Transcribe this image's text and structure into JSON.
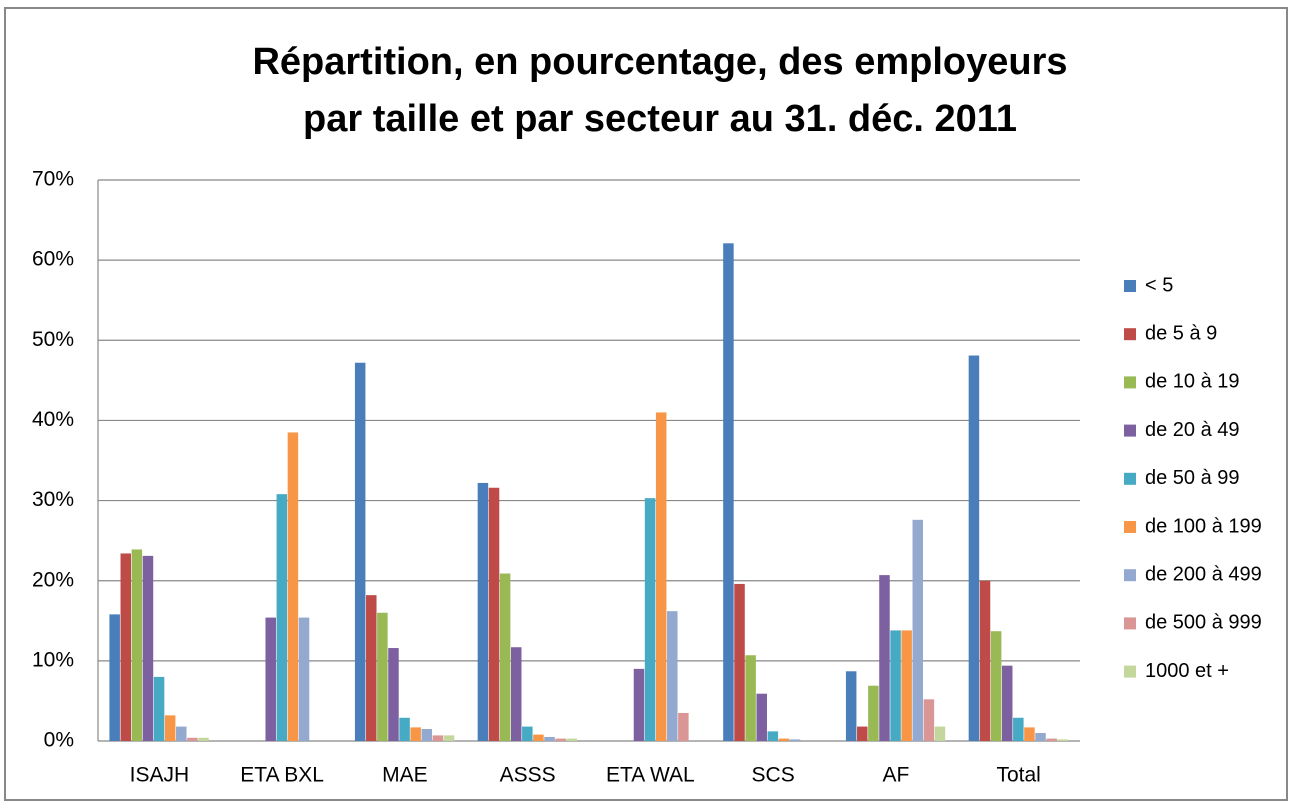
{
  "chart_data": {
    "type": "bar",
    "title": [
      "Répartition, en pourcentage, des employeurs",
      "par taille et par secteur au 31. déc. 2011"
    ],
    "categories": [
      "ISAJH",
      "ETA BXL",
      "MAE",
      "ASSS",
      "ETA WAL",
      "SCS",
      "AF",
      "Total"
    ],
    "series": [
      {
        "name": "< 5",
        "color": "#4a7ebb",
        "values": [
          15.8,
          0,
          47.2,
          32.2,
          0,
          62.1,
          8.7,
          48.1
        ]
      },
      {
        "name": "de 5 à 9",
        "color": "#be4b48",
        "values": [
          23.4,
          0,
          18.2,
          31.6,
          0,
          19.6,
          1.8,
          20.0
        ]
      },
      {
        "name": "de 10 à 19",
        "color": "#98b954",
        "values": [
          23.9,
          0,
          16.0,
          20.9,
          0,
          10.7,
          6.9,
          13.7
        ]
      },
      {
        "name": "de 20 à 49",
        "color": "#7d60a0",
        "values": [
          23.1,
          15.4,
          11.6,
          11.7,
          9.0,
          5.9,
          20.7,
          9.4
        ]
      },
      {
        "name": "de 50 à 99",
        "color": "#46aac5",
        "values": [
          8.0,
          30.8,
          2.9,
          1.8,
          30.3,
          1.2,
          13.8,
          2.9
        ]
      },
      {
        "name": "de 100 à 199",
        "color": "#f79646",
        "values": [
          3.2,
          38.5,
          1.7,
          0.8,
          41.0,
          0.3,
          13.8,
          1.7
        ]
      },
      {
        "name": "de 200 à 499",
        "color": "#93a9d0",
        "values": [
          1.8,
          15.4,
          1.5,
          0.5,
          16.2,
          0.2,
          27.6,
          1.0
        ]
      },
      {
        "name": "de 500 à 999",
        "color": "#d99694",
        "values": [
          0.4,
          0,
          0.7,
          0.3,
          3.5,
          0,
          5.2,
          0.3
        ]
      },
      {
        "name": "1000 et +",
        "color": "#c3d69b",
        "values": [
          0.4,
          0,
          0.7,
          0.3,
          0,
          0,
          1.8,
          0.2
        ]
      }
    ],
    "ylim": [
      0,
      70
    ],
    "yticks": [
      {
        "value": 0,
        "label": "0%"
      },
      {
        "value": 10,
        "label": "10%"
      },
      {
        "value": 20,
        "label": "20%"
      },
      {
        "value": 30,
        "label": "30%"
      },
      {
        "value": 40,
        "label": "40%"
      },
      {
        "value": 50,
        "label": "50%"
      },
      {
        "value": 60,
        "label": "60%"
      },
      {
        "value": 70,
        "label": "70%"
      }
    ],
    "grid": true,
    "legend": "right"
  }
}
